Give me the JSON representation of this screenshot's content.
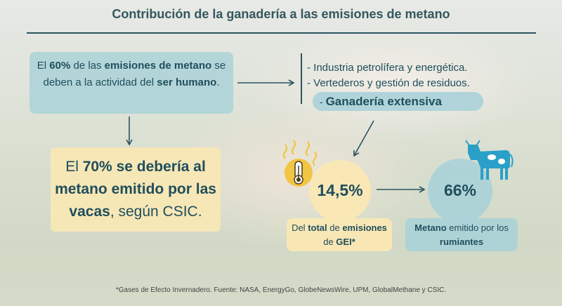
{
  "title": "Contribución de la ganadería a las emisiones de metano",
  "box1": {
    "t1": "El ",
    "t2": "60%",
    "t3": " de las ",
    "t4": "emisiones de metano",
    "t5": " se deben a la actividad del ",
    "t6": "ser humano",
    "t7": "."
  },
  "box2": {
    "t1": "El ",
    "t2": "70% se debería al metano emitido por las vacas",
    "t3": ", según CSIC."
  },
  "sources_list": [
    "- Industria petrolífera y energética.",
    "- Vertederos y gestión de residuos."
  ],
  "highlight": {
    "dash": "- ",
    "text": "Ganadería extensiva"
  },
  "stat_a": {
    "value": "14,5%",
    "l1": "Del ",
    "l2": "total",
    "l3": " de ",
    "l4": "emisiones",
    "l5": " de ",
    "l6": "GEI*"
  },
  "stat_b": {
    "value": "66%",
    "l1": "Metano",
    "l2": " emitido por los ",
    "l3": "rumiantes"
  },
  "footnote": "*Gases de Efecto Invernadero. Fuente: NASA, EnergyGo, GlobeNewsWire, UPM, GlobalMethane y CSIC.",
  "colors": {
    "teal_box": "#aad2d8",
    "yellow_box": "#fae8b4",
    "text": "#1f4e5c",
    "icon_yellow": "#f2c542",
    "cow_blue": "#2aa0c8"
  },
  "icons": [
    "thermometer-heat-icon",
    "cow-icon"
  ]
}
